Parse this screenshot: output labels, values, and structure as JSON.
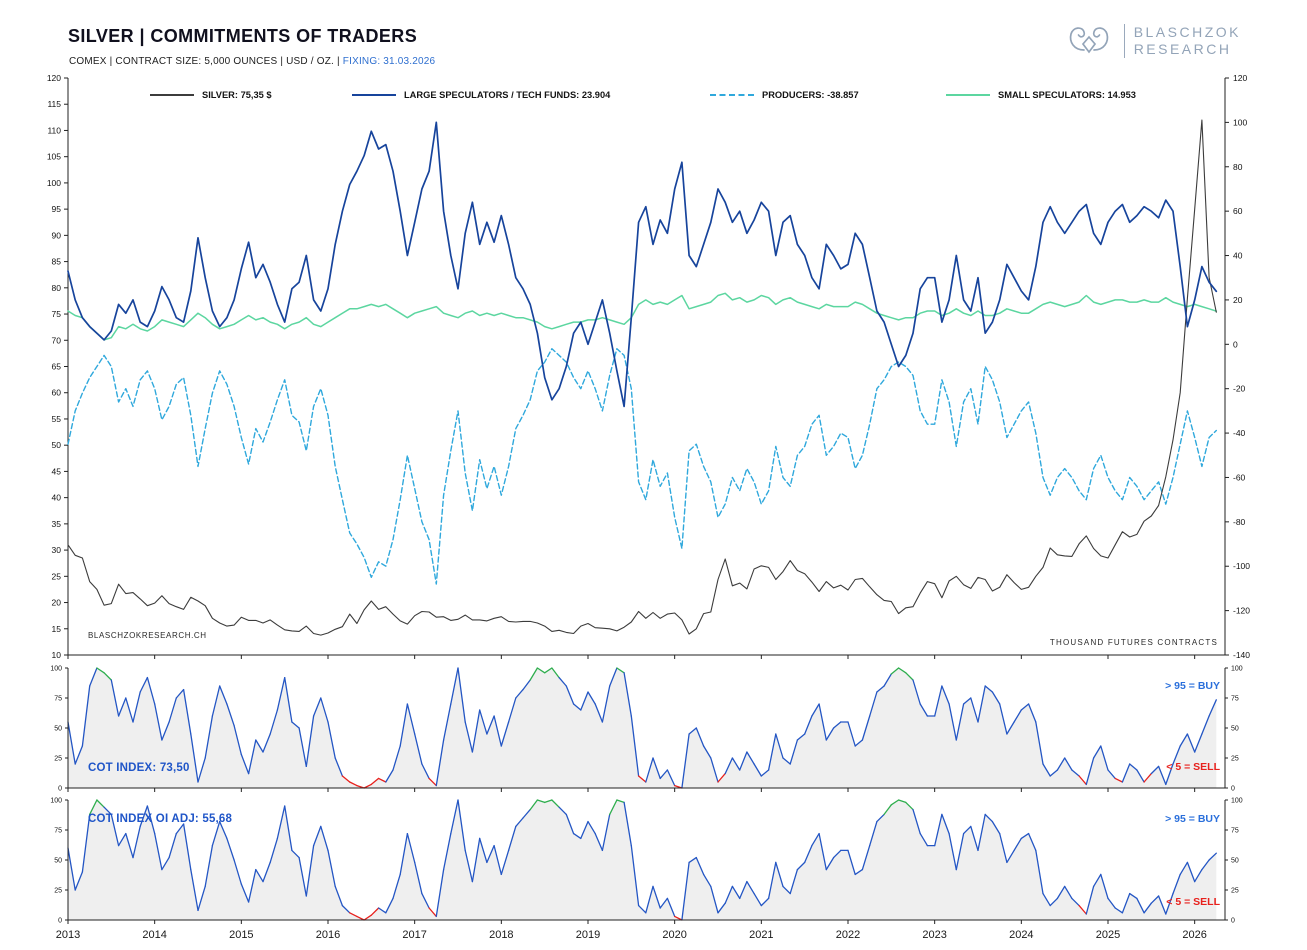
{
  "header": {
    "title": "SILVER | COMMITMENTS OF TRADERS",
    "subtitle": "COMEX | CONTRACT SIZE: 5,000 OUNCES | USD / OZ. |",
    "fixing": "FIXING: 31.03.2026",
    "logo": {
      "line1": "BLASCHZOK",
      "line2": "RESEARCH"
    }
  },
  "colors": {
    "silver": "#3c3c3c",
    "large_specs": "#17449c",
    "producers": "#2fa8dc",
    "small_specs": "#5cd6a0",
    "cot_line": "#2456c4",
    "cot_buy": "#2fae4e",
    "cot_sell": "#e8211d",
    "cot_fill": "#efefef",
    "axis": "#222222",
    "accent_blue": "#2e6fd0"
  },
  "chart_data": [
    {
      "type": "line",
      "title": "SILVER | COMMITMENTS OF TRADERS",
      "watermark": "BLASCHZOKRESEARCH.CH",
      "x": {
        "start": 2013,
        "step": 0.0833333,
        "count": 160,
        "unit": "year-monthly"
      },
      "xlim": [
        2013,
        2026.35
      ],
      "x_ticks": [
        2013,
        2014,
        2015,
        2016,
        2017,
        2018,
        2019,
        2020,
        2021,
        2022,
        2023,
        2024,
        2025,
        2026
      ],
      "left_axis": {
        "min": 10,
        "max": 120,
        "step": 5,
        "label": "USD / OZ."
      },
      "right_axis": {
        "min": -140,
        "max": 120,
        "step": 20,
        "label": "THOUSAND  FUTURES  CONTRACTS"
      },
      "series": [
        {
          "name": "SILVER",
          "legend": "SILVER: 75,35 $",
          "current": "75,35 $",
          "axis": "left",
          "color": "#3c3c3c",
          "style": "solid",
          "values": [
            31.0,
            29.0,
            28.5,
            24.0,
            22.5,
            19.5,
            19.8,
            23.5,
            21.7,
            21.9,
            20.7,
            19.4,
            19.9,
            21.3,
            19.8,
            19.2,
            18.7,
            21.0,
            20.3,
            19.4,
            17.0,
            16.1,
            15.5,
            15.7,
            17.2,
            16.6,
            16.6,
            16.1,
            16.7,
            15.7,
            14.8,
            14.6,
            14.5,
            15.5,
            14.1,
            13.8,
            14.2,
            14.9,
            15.4,
            17.8,
            16.0,
            18.6,
            20.3,
            18.7,
            19.2,
            17.8,
            16.5,
            15.9,
            17.5,
            18.3,
            18.2,
            17.2,
            17.3,
            16.6,
            16.8,
            17.6,
            16.7,
            16.7,
            16.5,
            17.0,
            17.3,
            16.4,
            16.3,
            16.4,
            16.4,
            16.1,
            15.5,
            14.5,
            14.7,
            14.3,
            14.1,
            15.5,
            16.0,
            15.2,
            15.1,
            15.0,
            14.6,
            15.3,
            16.3,
            18.3,
            17.0,
            18.1,
            17.0,
            17.8,
            18.0,
            16.7,
            14.0,
            15.0,
            17.9,
            18.2,
            24.4,
            28.3,
            23.2,
            23.7,
            22.6,
            26.4,
            27.0,
            26.7,
            24.4,
            25.9,
            28.0,
            26.1,
            25.5,
            23.9,
            22.1,
            24.0,
            22.8,
            23.3,
            22.4,
            24.4,
            24.6,
            23.0,
            21.5,
            20.4,
            20.2,
            17.9,
            19.0,
            19.2,
            21.8,
            24.0,
            23.6,
            20.9,
            24.1,
            25.0,
            23.4,
            22.7,
            24.8,
            24.4,
            22.2,
            22.9,
            25.3,
            23.8,
            22.5,
            22.9,
            25.0,
            26.7,
            30.4,
            29.1,
            28.9,
            28.8,
            31.2,
            32.7,
            30.3,
            28.9,
            28.5,
            31.0,
            33.5,
            32.5,
            33.0,
            35.5,
            36.5,
            38.5,
            44.0,
            51.0,
            60.0,
            78.0,
            95.0,
            112.0,
            82.0,
            75.35
          ]
        },
        {
          "name": "LARGE SPECULATORS / TECH FUNDS",
          "legend": "LARGE SPECULATORS / TECH FUNDS: 23.904",
          "current": "23.904",
          "axis": "right",
          "color": "#17449c",
          "style": "solid",
          "values": [
            33,
            20,
            12,
            8,
            5,
            2,
            6,
            18,
            14,
            20,
            10,
            8,
            15,
            26,
            20,
            12,
            10,
            24,
            48,
            30,
            15,
            8,
            12,
            20,
            34,
            46,
            30,
            36,
            28,
            18,
            10,
            25,
            28,
            40,
            20,
            15,
            25,
            45,
            60,
            72,
            78,
            85,
            96,
            88,
            90,
            78,
            60,
            40,
            55,
            70,
            78,
            100,
            60,
            40,
            25,
            50,
            64,
            45,
            55,
            46,
            58,
            45,
            30,
            25,
            18,
            5,
            -15,
            -25,
            -20,
            -10,
            5,
            10,
            0,
            10,
            20,
            5,
            -12,
            -28,
            12,
            55,
            62,
            45,
            56,
            50,
            70,
            82,
            40,
            35,
            45,
            55,
            70,
            64,
            55,
            60,
            50,
            56,
            64,
            60,
            40,
            55,
            58,
            45,
            40,
            30,
            25,
            45,
            40,
            34,
            36,
            50,
            45,
            30,
            15,
            10,
            0,
            -10,
            -5,
            5,
            25,
            30,
            30,
            10,
            20,
            40,
            20,
            15,
            30,
            5,
            10,
            20,
            36,
            30,
            24,
            20,
            35,
            55,
            62,
            55,
            50,
            55,
            60,
            63,
            50,
            45,
            55,
            60,
            63,
            55,
            58,
            62,
            60,
            57,
            65,
            60,
            35,
            8,
            20,
            35,
            28,
            23.904
          ]
        },
        {
          "name": "PRODUCERS",
          "legend": "PRODUCERS: -38.857",
          "current": "-38.857",
          "axis": "right",
          "color": "#2fa8dc",
          "style": "dashed",
          "values": [
            -45,
            -30,
            -22,
            -15,
            -10,
            -5,
            -10,
            -26,
            -20,
            -28,
            -16,
            -12,
            -20,
            -34,
            -28,
            -18,
            -15,
            -32,
            -55,
            -38,
            -22,
            -12,
            -18,
            -28,
            -42,
            -54,
            -38,
            -44,
            -35,
            -25,
            -16,
            -32,
            -35,
            -48,
            -28,
            -20,
            -32,
            -55,
            -70,
            -85,
            -90,
            -96,
            -105,
            -98,
            -100,
            -88,
            -70,
            -50,
            -65,
            -80,
            -88,
            -108,
            -68,
            -48,
            -30,
            -58,
            -75,
            -52,
            -65,
            -55,
            -68,
            -55,
            -38,
            -32,
            -25,
            -12,
            -8,
            -2,
            -5,
            -8,
            -15,
            -20,
            -12,
            -20,
            -30,
            -14,
            -2,
            -5,
            -20,
            -62,
            -70,
            -52,
            -64,
            -58,
            -78,
            -92,
            -48,
            -45,
            -55,
            -62,
            -78,
            -72,
            -60,
            -66,
            -56,
            -62,
            -72,
            -66,
            -46,
            -60,
            -64,
            -50,
            -46,
            -36,
            -32,
            -50,
            -46,
            -40,
            -42,
            -56,
            -50,
            -36,
            -20,
            -16,
            -10,
            -8,
            -10,
            -14,
            -30,
            -36,
            -36,
            -16,
            -26,
            -46,
            -26,
            -20,
            -36,
            -10,
            -16,
            -26,
            -42,
            -36,
            -30,
            -26,
            -40,
            -60,
            -68,
            -60,
            -56,
            -60,
            -66,
            -70,
            -56,
            -50,
            -60,
            -66,
            -70,
            -60,
            -64,
            -70,
            -66,
            -62,
            -72,
            -60,
            -45,
            -30,
            -42,
            -55,
            -42,
            -38.857
          ]
        },
        {
          "name": "SMALL SPECULATORS",
          "legend": "SMALL SPECULATORS: 14.953",
          "current": "14.953",
          "axis": "right",
          "color": "#5cd6a0",
          "style": "solid",
          "values": [
            15,
            13,
            12,
            8,
            5,
            2,
            3,
            8,
            7,
            9,
            7,
            6,
            8,
            11,
            10,
            9,
            8,
            11,
            14,
            12,
            9,
            7,
            8,
            9,
            11,
            13,
            11,
            12,
            10,
            9,
            7,
            9,
            10,
            12,
            9,
            8,
            10,
            12,
            14,
            16,
            16,
            17,
            18,
            17,
            18,
            16,
            14,
            12,
            14,
            15,
            16,
            17,
            14,
            13,
            12,
            14,
            15,
            13,
            14,
            13,
            14,
            13,
            12,
            12,
            11,
            10,
            8,
            7,
            8,
            9,
            10,
            10,
            11,
            11,
            12,
            11,
            10,
            9,
            12,
            18,
            20,
            18,
            19,
            18,
            20,
            22,
            16,
            17,
            18,
            19,
            22,
            23,
            20,
            21,
            19,
            20,
            22,
            21,
            18,
            20,
            21,
            19,
            18,
            17,
            16,
            18,
            17,
            17,
            17,
            19,
            18,
            16,
            14,
            13,
            12,
            11,
            12,
            12,
            14,
            15,
            15,
            13,
            14,
            16,
            14,
            13,
            15,
            13,
            13,
            14,
            16,
            15,
            14,
            14,
            16,
            18,
            19,
            18,
            17,
            18,
            19,
            22,
            19,
            18,
            19,
            20,
            20,
            19,
            19,
            20,
            19,
            19,
            21,
            19,
            18,
            17,
            18,
            17,
            16,
            14.953
          ]
        }
      ]
    },
    {
      "type": "area-line",
      "label": "COT INDEX: 73,50",
      "current": 73.5,
      "ylim": [
        0,
        100
      ],
      "yticks": [
        0,
        25,
        50,
        75,
        100
      ],
      "thresholds": {
        "buy": 95,
        "sell": 5
      },
      "annotations": {
        "buy": "> 95 = BUY",
        "sell": "< 5 = SELL"
      },
      "values": [
        55,
        20,
        35,
        85,
        100,
        96,
        90,
        60,
        75,
        55,
        80,
        92,
        70,
        40,
        55,
        75,
        82,
        45,
        5,
        25,
        60,
        85,
        70,
        52,
        28,
        12,
        40,
        30,
        45,
        65,
        92,
        55,
        50,
        18,
        60,
        75,
        55,
        25,
        10,
        5,
        2,
        0,
        3,
        8,
        5,
        15,
        35,
        70,
        45,
        20,
        8,
        2,
        40,
        70,
        100,
        55,
        30,
        65,
        45,
        60,
        35,
        55,
        75,
        82,
        90,
        100,
        96,
        100,
        92,
        85,
        70,
        65,
        80,
        70,
        55,
        85,
        100,
        96,
        60,
        10,
        5,
        25,
        8,
        15,
        2,
        0,
        45,
        50,
        35,
        25,
        5,
        12,
        25,
        15,
        30,
        20,
        10,
        15,
        45,
        25,
        20,
        40,
        45,
        60,
        70,
        40,
        50,
        55,
        55,
        35,
        40,
        60,
        80,
        85,
        95,
        100,
        96,
        90,
        70,
        60,
        60,
        85,
        70,
        40,
        70,
        75,
        55,
        85,
        80,
        70,
        45,
        55,
        65,
        70,
        55,
        20,
        10,
        15,
        25,
        15,
        10,
        3,
        25,
        35,
        15,
        8,
        5,
        20,
        15,
        5,
        12,
        18,
        3,
        20,
        35,
        45,
        30,
        45,
        60,
        73.5
      ]
    },
    {
      "type": "area-line",
      "label": "COT INDEX OI ADJ: 55,68",
      "current": 55.68,
      "ylim": [
        0,
        100
      ],
      "yticks": [
        0,
        25,
        50,
        75,
        100
      ],
      "thresholds": {
        "buy": 95,
        "sell": 5
      },
      "annotations": {
        "buy": "> 95 = BUY",
        "sell": "< 5 = SELL"
      },
      "values": [
        60,
        25,
        40,
        88,
        100,
        94,
        88,
        62,
        72,
        52,
        78,
        95,
        72,
        42,
        52,
        72,
        80,
        42,
        8,
        28,
        62,
        82,
        68,
        50,
        30,
        15,
        42,
        32,
        48,
        68,
        95,
        58,
        52,
        20,
        62,
        78,
        58,
        28,
        12,
        6,
        3,
        0,
        4,
        10,
        6,
        18,
        38,
        72,
        48,
        22,
        10,
        3,
        42,
        72,
        100,
        58,
        32,
        68,
        48,
        62,
        38,
        58,
        78,
        85,
        92,
        100,
        98,
        100,
        94,
        88,
        72,
        68,
        82,
        72,
        58,
        88,
        100,
        98,
        62,
        12,
        6,
        28,
        10,
        18,
        3,
        0,
        48,
        52,
        38,
        28,
        6,
        14,
        28,
        18,
        32,
        22,
        12,
        18,
        48,
        28,
        22,
        42,
        48,
        62,
        72,
        42,
        52,
        58,
        58,
        38,
        42,
        62,
        82,
        88,
        96,
        100,
        98,
        92,
        72,
        62,
        62,
        88,
        72,
        42,
        72,
        78,
        58,
        88,
        82,
        72,
        48,
        58,
        68,
        72,
        58,
        22,
        12,
        18,
        28,
        18,
        12,
        5,
        28,
        38,
        18,
        10,
        6,
        22,
        18,
        6,
        14,
        20,
        5,
        22,
        38,
        48,
        32,
        42,
        50,
        55.68
      ]
    }
  ]
}
